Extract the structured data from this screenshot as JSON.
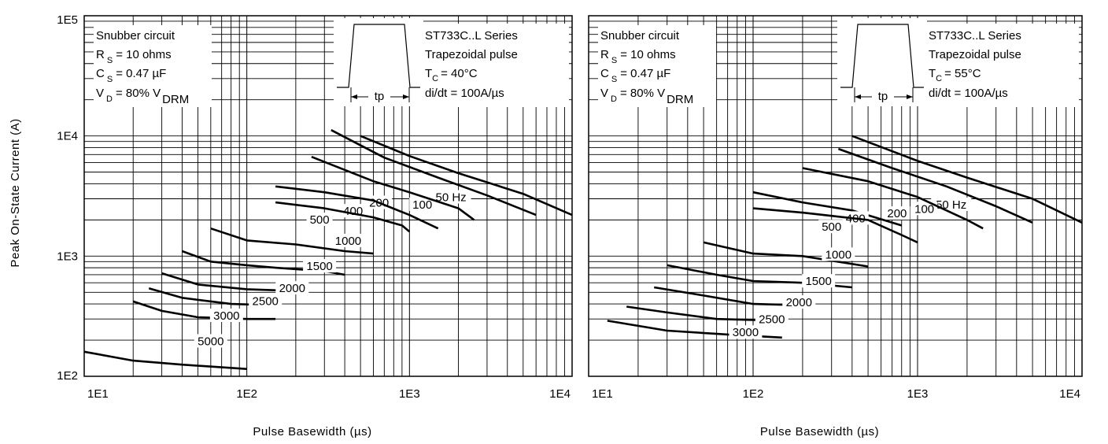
{
  "ylabel": "Peak On-State Current (A)",
  "chart_data": [
    {
      "type": "line",
      "xlabel": "Pulse Basewidth (µs)",
      "ylabel": "Peak On-State Current (A)",
      "x_scale": "log",
      "y_scale": "log",
      "xlim": [
        10,
        10000
      ],
      "ylim": [
        100,
        100000
      ],
      "x_ticks": [
        "1E1",
        "1E2",
        "1E3",
        "1E4"
      ],
      "y_ticks": [
        "1E2",
        "1E3",
        "1E4",
        "1E5"
      ],
      "grid": true,
      "conditions": {
        "snubber": "Snubber circuit",
        "rs": "R",
        "rs_sub": "S",
        "rs_val": "= 10 ohms",
        "cs": "C",
        "cs_sub": "S",
        "cs_val": "= 0.47 µF",
        "vd": "V",
        "vd_sub": "D",
        "vd_val": "= 80% V",
        "vd_sub2": "DRM",
        "series_name": "ST733C..L Series",
        "pulse": "Trapezoidal pulse",
        "tc": "T",
        "tc_sub": "C",
        "tc_val": "= 40°C",
        "didt": "di/dt = 100A/µs",
        "tp": "tp"
      },
      "series": [
        {
          "name": "50 Hz",
          "x": [
            500,
            1000,
            2000,
            5000,
            10000
          ],
          "y": [
            10000,
            6800,
            4900,
            3300,
            2200
          ]
        },
        {
          "name": "100",
          "x": [
            330,
            700,
            1500,
            3000,
            6000
          ],
          "y": [
            11200,
            6600,
            4500,
            3200,
            2200
          ]
        },
        {
          "name": "200",
          "x": [
            250,
            600,
            1000,
            2000,
            2500
          ],
          "y": [
            6700,
            4200,
            3400,
            2500,
            2000
          ]
        },
        {
          "name": "400",
          "x": [
            150,
            300,
            600,
            1000,
            1500
          ],
          "y": [
            3800,
            3400,
            2900,
            2200,
            1700
          ]
        },
        {
          "name": "500",
          "x": [
            150,
            300,
            600,
            900,
            1000
          ],
          "y": [
            2800,
            2500,
            2100,
            1800,
            1600
          ]
        },
        {
          "name": "1000",
          "x": [
            60,
            100,
            200,
            400,
            600
          ],
          "y": [
            1700,
            1350,
            1250,
            1100,
            1050
          ]
        },
        {
          "name": "1500",
          "x": [
            40,
            60,
            100,
            150,
            300,
            400
          ],
          "y": [
            1100,
            900,
            840,
            800,
            750,
            700
          ]
        },
        {
          "name": "2000",
          "x": [
            30,
            50,
            100,
            150,
            200
          ],
          "y": [
            720,
            580,
            530,
            520,
            500
          ]
        },
        {
          "name": "2500",
          "x": [
            25,
            40,
            80,
            150
          ],
          "y": [
            540,
            450,
            400,
            390
          ]
        },
        {
          "name": "3000",
          "x": [
            20,
            30,
            50,
            100,
            150
          ],
          "y": [
            420,
            350,
            310,
            300,
            300
          ]
        },
        {
          "name": "5000",
          "x": [
            10,
            20,
            40,
            100
          ],
          "y": [
            160,
            135,
            125,
            115
          ]
        }
      ]
    },
    {
      "type": "line",
      "xlabel": "Pulse Basewidth (µs)",
      "x_scale": "log",
      "y_scale": "log",
      "xlim": [
        10,
        10000
      ],
      "ylim": [
        100,
        100000
      ],
      "x_ticks": [
        "1E1",
        "1E2",
        "1E3",
        "1E4"
      ],
      "grid": true,
      "conditions": {
        "snubber": "Snubber circuit",
        "rs": "R",
        "rs_sub": "S",
        "rs_val": "= 10 ohms",
        "cs": "C",
        "cs_sub": "S",
        "cs_val": "= 0.47 µF",
        "vd": "V",
        "vd_sub": "D",
        "vd_val": "= 80% V",
        "vd_sub2": "DRM",
        "series_name": "ST733C..L Series",
        "pulse": "Trapezoidal pulse",
        "tc": "T",
        "tc_sub": "C",
        "tc_val": "= 55°C",
        "didt": "di/dt = 100A/µs",
        "tp": "tp"
      },
      "series": [
        {
          "name": "50 Hz",
          "x": [
            400,
            1000,
            2000,
            5000,
            10000
          ],
          "y": [
            10000,
            6200,
            4500,
            3000,
            1900
          ]
        },
        {
          "name": "100",
          "x": [
            330,
            700,
            1500,
            3000,
            5000
          ],
          "y": [
            7800,
            5400,
            3800,
            2600,
            1900
          ]
        },
        {
          "name": "200",
          "x": [
            200,
            500,
            1000,
            2000,
            2500
          ],
          "y": [
            5400,
            4200,
            3100,
            2000,
            1700
          ]
        },
        {
          "name": "400",
          "x": [
            100,
            200,
            400,
            800
          ],
          "y": [
            3400,
            2800,
            2400,
            1800
          ]
        },
        {
          "name": "500",
          "x": [
            100,
            200,
            500,
            800,
            1000
          ],
          "y": [
            2500,
            2300,
            2000,
            1500,
            1300
          ]
        },
        {
          "name": "1000",
          "x": [
            50,
            100,
            200,
            500
          ],
          "y": [
            1300,
            1050,
            1000,
            820
          ]
        },
        {
          "name": "1500",
          "x": [
            30,
            60,
            100,
            200,
            400
          ],
          "y": [
            840,
            700,
            620,
            600,
            550
          ]
        },
        {
          "name": "2000",
          "x": [
            25,
            50,
            100,
            200
          ],
          "y": [
            550,
            470,
            400,
            390
          ]
        },
        {
          "name": "2500",
          "x": [
            17,
            30,
            60,
            150
          ],
          "y": [
            380,
            340,
            300,
            290
          ]
        },
        {
          "name": "3000",
          "x": [
            13,
            30,
            80,
            150
          ],
          "y": [
            290,
            240,
            220,
            210
          ]
        }
      ]
    }
  ]
}
